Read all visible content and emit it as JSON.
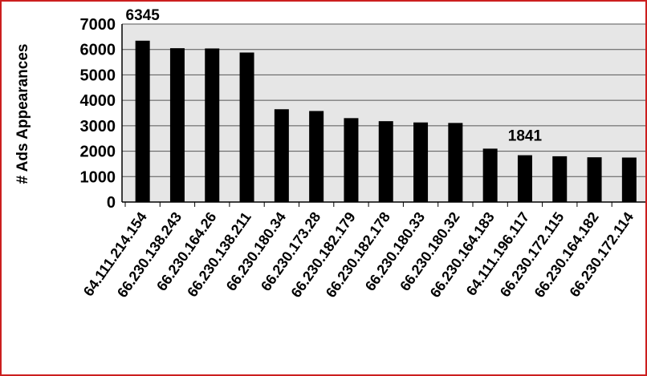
{
  "chart_data": {
    "type": "bar",
    "ylabel": "# Ads Appearances",
    "xlabel": "",
    "ylim": [
      0,
      7000
    ],
    "yticks": [
      0,
      1000,
      2000,
      3000,
      4000,
      5000,
      6000,
      7000
    ],
    "categories": [
      "64.111.214.154",
      "66.230.138.243",
      "66.230.164.26",
      "66.230.138.211",
      "66.230.180.34",
      "66.230.173.28",
      "66.230.182.179",
      "66.230.182.178",
      "66.230.180.33",
      "66.230.180.32",
      "66.230.164.183",
      "64.111.196.117",
      "66.230.172.115",
      "66.230.164.182",
      "66.230.172.114"
    ],
    "values": [
      6345,
      6050,
      6040,
      5880,
      3650,
      3580,
      3300,
      3180,
      3130,
      3110,
      2100,
      1841,
      1800,
      1760,
      1750
    ],
    "data_labels": [
      {
        "index": 0,
        "text": "6345"
      },
      {
        "index": 11,
        "text": "1841"
      }
    ],
    "grid": true,
    "colors": {
      "bar": "#000000",
      "plot_bg": "#e6e6e6",
      "grid": "#555555",
      "frame": "#cc1f1f"
    }
  }
}
